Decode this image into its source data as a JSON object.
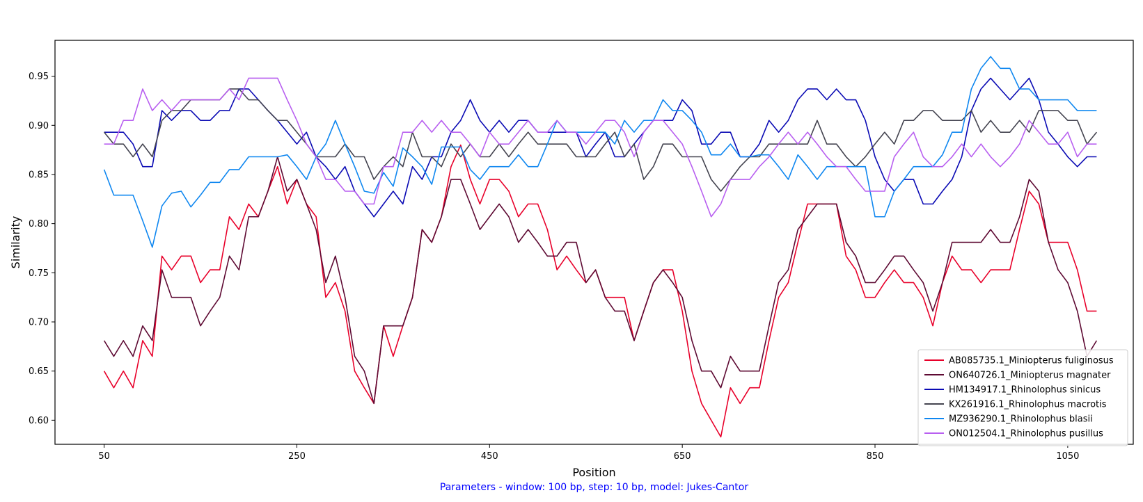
{
  "chart_data": {
    "type": "line",
    "xlabel": "Position",
    "ylabel": "Similarity",
    "xlim": [
      -1,
      1118
    ],
    "ylim": [
      0.5755,
      0.9865
    ],
    "xticks": [
      50,
      250,
      450,
      650,
      850,
      1050
    ],
    "yticks": [
      0.6,
      0.65,
      0.7,
      0.75,
      0.8,
      0.85,
      0.9,
      0.95
    ],
    "legend_position": "bottom-right",
    "grid": false,
    "x": [
      50,
      60,
      70,
      80,
      90,
      100,
      110,
      120,
      130,
      140,
      150,
      160,
      170,
      180,
      190,
      200,
      210,
      220,
      230,
      240,
      250,
      260,
      270,
      280,
      290,
      300,
      310,
      320,
      330,
      340,
      350,
      360,
      370,
      380,
      390,
      400,
      410,
      420,
      430,
      440,
      450,
      460,
      470,
      480,
      490,
      500,
      510,
      520,
      530,
      540,
      550,
      560,
      570,
      580,
      590,
      600,
      610,
      620,
      630,
      640,
      650,
      660,
      670,
      680,
      690,
      700,
      710,
      720,
      730,
      740,
      750,
      760,
      770,
      780,
      790,
      800,
      810,
      820,
      830,
      840,
      850,
      860,
      870,
      880,
      890,
      900,
      910,
      920,
      930,
      940,
      950,
      960,
      970,
      980,
      990,
      1000,
      1010,
      1020,
      1030,
      1040,
      1050,
      1060,
      1070,
      1080
    ],
    "series": [
      {
        "name": "AB085735.1_Miniopterus fuliginosus",
        "color": "#e8002a",
        "values": [
          0.65,
          0.633,
          0.65,
          0.633,
          0.681,
          0.665,
          0.767,
          0.753,
          0.767,
          0.767,
          0.74,
          0.753,
          0.753,
          0.807,
          0.794,
          0.82,
          0.807,
          0.833,
          0.858,
          0.82,
          0.845,
          0.82,
          0.807,
          0.725,
          0.74,
          0.711,
          0.65,
          0.633,
          0.617,
          0.696,
          0.665,
          0.696,
          0.725,
          0.794,
          0.781,
          0.807,
          0.858,
          0.88,
          0.845,
          0.82,
          0.845,
          0.845,
          0.833,
          0.807,
          0.82,
          0.82,
          0.794,
          0.753,
          0.767,
          0.753,
          0.74,
          0.753,
          0.725,
          0.725,
          0.725,
          0.681,
          0.711,
          0.74,
          0.753,
          0.753,
          0.711,
          0.65,
          0.617,
          0.6,
          0.583,
          0.633,
          0.617,
          0.633,
          0.633,
          0.681,
          0.725,
          0.74,
          0.781,
          0.82,
          0.82,
          0.82,
          0.82,
          0.767,
          0.753,
          0.725,
          0.725,
          0.74,
          0.753,
          0.74,
          0.74,
          0.725,
          0.696,
          0.74,
          0.767,
          0.753,
          0.753,
          0.74,
          0.753,
          0.753,
          0.753,
          0.794,
          0.833,
          0.82,
          0.781,
          0.781,
          0.781,
          0.753,
          0.711,
          0.711
        ]
      },
      {
        "name": "ON640726.1_Miniopterus magnater",
        "color": "#5e0a33",
        "values": [
          0.681,
          0.665,
          0.681,
          0.665,
          0.696,
          0.681,
          0.753,
          0.725,
          0.725,
          0.725,
          0.696,
          0.711,
          0.725,
          0.767,
          0.753,
          0.807,
          0.807,
          0.833,
          0.868,
          0.833,
          0.845,
          0.82,
          0.794,
          0.74,
          0.767,
          0.725,
          0.665,
          0.65,
          0.617,
          0.696,
          0.696,
          0.696,
          0.725,
          0.794,
          0.781,
          0.807,
          0.845,
          0.845,
          0.82,
          0.794,
          0.807,
          0.82,
          0.807,
          0.781,
          0.794,
          0.781,
          0.767,
          0.767,
          0.781,
          0.781,
          0.74,
          0.753,
          0.725,
          0.711,
          0.711,
          0.681,
          0.711,
          0.74,
          0.753,
          0.74,
          0.725,
          0.681,
          0.65,
          0.65,
          0.633,
          0.665,
          0.65,
          0.65,
          0.65,
          0.696,
          0.74,
          0.753,
          0.794,
          0.807,
          0.82,
          0.82,
          0.82,
          0.781,
          0.767,
          0.74,
          0.74,
          0.753,
          0.767,
          0.767,
          0.753,
          0.74,
          0.711,
          0.74,
          0.781,
          0.781,
          0.781,
          0.781,
          0.794,
          0.781,
          0.781,
          0.807,
          0.845,
          0.833,
          0.781,
          0.753,
          0.74,
          0.711,
          0.665,
          0.681
        ]
      },
      {
        "name": "HM134917.1_Rhinolophus sinicus",
        "color": "#0a0ab4",
        "values": [
          0.893,
          0.893,
          0.893,
          0.881,
          0.858,
          0.858,
          0.915,
          0.905,
          0.915,
          0.915,
          0.905,
          0.905,
          0.915,
          0.915,
          0.937,
          0.937,
          0.926,
          0.915,
          0.905,
          0.893,
          0.881,
          0.893,
          0.868,
          0.858,
          0.845,
          0.858,
          0.833,
          0.82,
          0.807,
          0.82,
          0.833,
          0.82,
          0.858,
          0.845,
          0.868,
          0.868,
          0.893,
          0.905,
          0.926,
          0.905,
          0.893,
          0.905,
          0.893,
          0.905,
          0.905,
          0.893,
          0.893,
          0.893,
          0.893,
          0.893,
          0.868,
          0.881,
          0.893,
          0.868,
          0.868,
          0.881,
          0.893,
          0.905,
          0.905,
          0.905,
          0.926,
          0.915,
          0.881,
          0.881,
          0.893,
          0.893,
          0.868,
          0.868,
          0.881,
          0.905,
          0.893,
          0.905,
          0.926,
          0.937,
          0.937,
          0.926,
          0.937,
          0.926,
          0.926,
          0.905,
          0.868,
          0.845,
          0.833,
          0.845,
          0.845,
          0.82,
          0.82,
          0.833,
          0.845,
          0.868,
          0.915,
          0.937,
          0.948,
          0.937,
          0.926,
          0.937,
          0.948,
          0.926,
          0.893,
          0.881,
          0.868,
          0.858,
          0.868,
          0.868
        ]
      },
      {
        "name": "KX261916.1_Rhinolophus macrotis",
        "color": "#444450",
        "values": [
          0.893,
          0.881,
          0.881,
          0.868,
          0.881,
          0.868,
          0.905,
          0.915,
          0.915,
          0.926,
          0.926,
          0.926,
          0.926,
          0.937,
          0.937,
          0.926,
          0.926,
          0.915,
          0.905,
          0.905,
          0.893,
          0.881,
          0.868,
          0.868,
          0.868,
          0.881,
          0.868,
          0.868,
          0.845,
          0.858,
          0.868,
          0.858,
          0.893,
          0.868,
          0.868,
          0.858,
          0.881,
          0.868,
          0.881,
          0.868,
          0.868,
          0.881,
          0.868,
          0.881,
          0.893,
          0.881,
          0.881,
          0.881,
          0.881,
          0.868,
          0.868,
          0.868,
          0.881,
          0.893,
          0.868,
          0.881,
          0.845,
          0.858,
          0.881,
          0.881,
          0.868,
          0.868,
          0.868,
          0.845,
          0.833,
          0.845,
          0.858,
          0.868,
          0.868,
          0.881,
          0.881,
          0.881,
          0.881,
          0.881,
          0.905,
          0.881,
          0.881,
          0.868,
          0.858,
          0.868,
          0.881,
          0.893,
          0.881,
          0.905,
          0.905,
          0.915,
          0.915,
          0.905,
          0.905,
          0.905,
          0.915,
          0.893,
          0.905,
          0.893,
          0.893,
          0.905,
          0.893,
          0.915,
          0.915,
          0.915,
          0.905,
          0.905,
          0.881,
          0.893
        ]
      },
      {
        "name": "MZ936290.1_Rhinolophus blasii",
        "color": "#0f87f0",
        "values": [
          0.855,
          0.829,
          0.829,
          0.829,
          0.803,
          0.776,
          0.818,
          0.831,
          0.833,
          0.817,
          0.829,
          0.842,
          0.842,
          0.855,
          0.855,
          0.868,
          0.868,
          0.868,
          0.868,
          0.87,
          0.858,
          0.845,
          0.868,
          0.881,
          0.905,
          0.881,
          0.858,
          0.833,
          0.831,
          0.852,
          0.838,
          0.877,
          0.868,
          0.858,
          0.84,
          0.878,
          0.878,
          0.878,
          0.855,
          0.845,
          0.858,
          0.858,
          0.858,
          0.87,
          0.858,
          0.858,
          0.881,
          0.905,
          0.893,
          0.893,
          0.893,
          0.893,
          0.893,
          0.881,
          0.905,
          0.893,
          0.905,
          0.905,
          0.926,
          0.915,
          0.915,
          0.905,
          0.893,
          0.87,
          0.87,
          0.881,
          0.868,
          0.868,
          0.87,
          0.87,
          0.858,
          0.845,
          0.87,
          0.858,
          0.845,
          0.858,
          0.858,
          0.858,
          0.858,
          0.858,
          0.807,
          0.807,
          0.833,
          0.845,
          0.858,
          0.858,
          0.858,
          0.87,
          0.893,
          0.893,
          0.937,
          0.958,
          0.97,
          0.958,
          0.958,
          0.937,
          0.937,
          0.926,
          0.926,
          0.926,
          0.926,
          0.915,
          0.915,
          0.915
        ]
      },
      {
        "name": "ON012504.1_Rhinolophus pusillus",
        "color": "#b85ff0",
        "values": [
          0.881,
          0.881,
          0.905,
          0.905,
          0.937,
          0.915,
          0.926,
          0.915,
          0.926,
          0.926,
          0.926,
          0.926,
          0.926,
          0.937,
          0.926,
          0.948,
          0.948,
          0.948,
          0.948,
          0.926,
          0.905,
          0.881,
          0.868,
          0.845,
          0.845,
          0.833,
          0.833,
          0.82,
          0.82,
          0.858,
          0.858,
          0.893,
          0.893,
          0.905,
          0.893,
          0.905,
          0.893,
          0.893,
          0.881,
          0.868,
          0.893,
          0.881,
          0.881,
          0.893,
          0.905,
          0.893,
          0.893,
          0.905,
          0.893,
          0.893,
          0.881,
          0.893,
          0.905,
          0.905,
          0.893,
          0.868,
          0.893,
          0.905,
          0.905,
          0.893,
          0.881,
          0.858,
          0.833,
          0.807,
          0.82,
          0.845,
          0.845,
          0.845,
          0.858,
          0.868,
          0.881,
          0.893,
          0.881,
          0.893,
          0.881,
          0.868,
          0.858,
          0.858,
          0.845,
          0.833,
          0.833,
          0.833,
          0.868,
          0.881,
          0.893,
          0.868,
          0.858,
          0.858,
          0.868,
          0.881,
          0.868,
          0.881,
          0.868,
          0.858,
          0.868,
          0.881,
          0.905,
          0.893,
          0.881,
          0.881,
          0.893,
          0.868,
          0.881,
          0.881
        ]
      }
    ],
    "footer": "Parameters - window: 100 bp, step: 10 bp, model: Jukes-Cantor",
    "footer_color": "#0000ff"
  }
}
